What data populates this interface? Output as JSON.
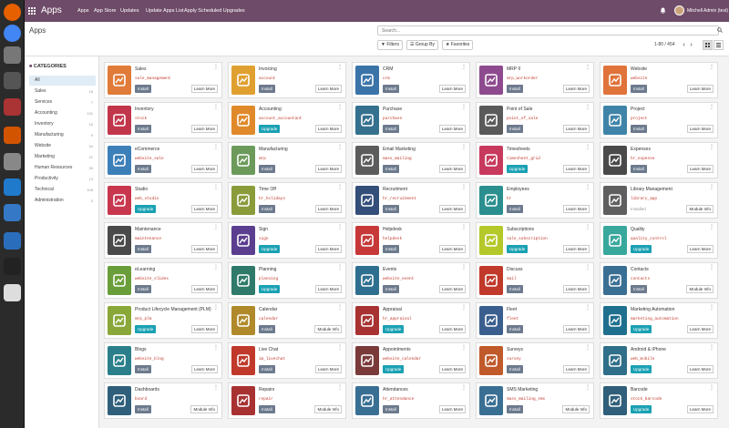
{
  "dock": {
    "icons": [
      "firefox-icon",
      "chrome-icon",
      "settings-icon",
      "calculator-icon",
      "camera-icon",
      "terminal-icon",
      "installer-icon",
      "vscode-icon",
      "files-icon",
      "hp-icon",
      "jetbrains-icon",
      "printer-icon"
    ]
  },
  "topbar": {
    "brand": "Apps",
    "menu": [
      "Apps",
      "App Store",
      "Updates",
      "Update Apps List",
      "Apply Scheduled Upgrades"
    ],
    "user": "Mitchell Admin (test)"
  },
  "control": {
    "title": "Apps",
    "search_placeholder": "Search...",
    "filters": "Filters",
    "group_by": "Group By",
    "favorites": "Favorites",
    "pager": "1-80 / 454"
  },
  "sidebar": {
    "heading": "CATEGORIES",
    "items": [
      {
        "label": "All",
        "count": ""
      },
      {
        "label": "Sales",
        "count": "16"
      },
      {
        "label": "Services",
        "count": "7"
      },
      {
        "label": "Accounting",
        "count": "131"
      },
      {
        "label": "Inventory",
        "count": "16"
      },
      {
        "label": "Manufacturing",
        "count": "9"
      },
      {
        "label": "Website",
        "count": "34"
      },
      {
        "label": "Marketing",
        "count": "22"
      },
      {
        "label": "Human Resources",
        "count": "35"
      },
      {
        "label": "Productivity",
        "count": "13"
      },
      {
        "label": "Technical",
        "count": "108"
      },
      {
        "label": "Administration",
        "count": "3"
      }
    ]
  },
  "apps": [
    {
      "name": "Sales",
      "tech": "sale_management",
      "action": "Install",
      "info": "Learn More",
      "color": "#e07b39",
      "icon": "sales-icon"
    },
    {
      "name": "Invoicing",
      "tech": "account",
      "action": "Install",
      "info": "Learn More",
      "color": "#e0a030",
      "icon": "invoicing-icon"
    },
    {
      "name": "CRM",
      "tech": "crm",
      "action": "Install",
      "info": "Learn More",
      "color": "#3a73a8",
      "icon": "crm-icon"
    },
    {
      "name": "MRP II",
      "tech": "mrp_workorder",
      "action": "Install",
      "info": "Learn More",
      "color": "#8e4a8e",
      "icon": "mrp-icon"
    },
    {
      "name": "Website",
      "tech": "website",
      "action": "Install",
      "info": "Learn More",
      "color": "#e0733a",
      "icon": "website-icon"
    },
    {
      "name": "Inventory",
      "tech": "stock",
      "action": "Install",
      "info": "Learn More",
      "color": "#c2364b",
      "icon": "inventory-icon"
    },
    {
      "name": "Accounting",
      "tech": "account_accountant",
      "action": "Upgrade",
      "info": "Learn More",
      "color": "#e0892b",
      "icon": "accounting-icon"
    },
    {
      "name": "Purchase",
      "tech": "purchase",
      "action": "Install",
      "info": "Learn More",
      "color": "#35708f",
      "icon": "purchase-icon"
    },
    {
      "name": "Point of Sale",
      "tech": "point_of_sale",
      "action": "Install",
      "info": "Learn More",
      "color": "#5a5a5a",
      "icon": "pos-icon"
    },
    {
      "name": "Project",
      "tech": "project",
      "action": "Install",
      "info": "Learn More",
      "color": "#3f84a8",
      "icon": "project-icon"
    },
    {
      "name": "eCommerce",
      "tech": "website_sale",
      "action": "Install",
      "info": "Learn More",
      "color": "#3d7fb8",
      "icon": "ecommerce-icon"
    },
    {
      "name": "Manufacturing",
      "tech": "mrp",
      "action": "Install",
      "info": "Learn More",
      "color": "#6c9a5b",
      "icon": "manufacturing-icon"
    },
    {
      "name": "Email Marketing",
      "tech": "mass_mailing",
      "action": "Install",
      "info": "Learn More",
      "color": "#5c5c5c",
      "icon": "email-marketing-icon"
    },
    {
      "name": "Timesheets",
      "tech": "timesheet_grid",
      "action": "Upgrade",
      "info": "Learn More",
      "color": "#c73a5d",
      "icon": "timesheets-icon"
    },
    {
      "name": "Expenses",
      "tech": "hr_expense",
      "action": "Install",
      "info": "Learn More",
      "color": "#4a4a4a",
      "icon": "expenses-icon"
    },
    {
      "name": "Studio",
      "tech": "web_studio",
      "action": "Upgrade",
      "info": "Learn More",
      "color": "#c8374e",
      "icon": "studio-icon"
    },
    {
      "name": "Time Off",
      "tech": "hr_holidays",
      "action": "Install",
      "info": "Learn More",
      "color": "#8a9b3a",
      "icon": "timeoff-icon"
    },
    {
      "name": "Recruitment",
      "tech": "hr_recruitment",
      "action": "Install",
      "info": "Learn More",
      "color": "#344e7a",
      "icon": "recruitment-icon"
    },
    {
      "name": "Employees",
      "tech": "hr",
      "action": "Install",
      "info": "Learn More",
      "color": "#2b8f8f",
      "icon": "employees-icon"
    },
    {
      "name": "Library Management",
      "tech": "library_app",
      "action": "Installed",
      "info": "Module Info",
      "color": "#5f5f5f",
      "icon": "library-icon"
    },
    {
      "name": "Maintenance",
      "tech": "maintenance",
      "action": "Install",
      "info": "Learn More",
      "color": "#4a4a4a",
      "icon": "maintenance-icon"
    },
    {
      "name": "Sign",
      "tech": "sign",
      "action": "Upgrade",
      "info": "Learn More",
      "color": "#5b3e8f",
      "icon": "sign-icon"
    },
    {
      "name": "Helpdesk",
      "tech": "helpdesk",
      "action": "Install",
      "info": "Learn More",
      "color": "#c73838",
      "icon": "helpdesk-icon"
    },
    {
      "name": "Subscriptions",
      "tech": "sale_subscription",
      "action": "Upgrade",
      "info": "Learn More",
      "color": "#b5c82a",
      "icon": "subscriptions-icon"
    },
    {
      "name": "Quality",
      "tech": "quality_control",
      "action": "Upgrade",
      "info": "Learn More",
      "color": "#38a89d",
      "icon": "quality-icon"
    },
    {
      "name": "eLearning",
      "tech": "website_slides",
      "action": "Install",
      "info": "Learn More",
      "color": "#6a9e3a",
      "icon": "elearning-icon"
    },
    {
      "name": "Planning",
      "tech": "planning",
      "action": "Upgrade",
      "info": "Learn More",
      "color": "#2f7a6a",
      "icon": "planning-icon"
    },
    {
      "name": "Events",
      "tech": "website_event",
      "action": "Install",
      "info": "Learn More",
      "color": "#2e6f8f",
      "icon": "events-icon"
    },
    {
      "name": "Discuss",
      "tech": "mail",
      "action": "Install",
      "info": "Learn More",
      "color": "#c0392b",
      "icon": "discuss-icon"
    },
    {
      "name": "Contacts",
      "tech": "contacts",
      "action": "Install",
      "info": "Module Info",
      "color": "#3a6f94",
      "icon": "contacts-icon"
    },
    {
      "name": "Product Lifecycle Management (PLM)",
      "tech": "mrp_plm",
      "action": "Upgrade",
      "info": "Learn More",
      "color": "#8aa83a",
      "icon": "plm-icon"
    },
    {
      "name": "Calendar",
      "tech": "calendar",
      "action": "Install",
      "info": "Module Info",
      "color": "#b0892b",
      "icon": "calendar-icon"
    },
    {
      "name": "Appraisal",
      "tech": "hr_appraisal",
      "action": "Upgrade",
      "info": "Learn More",
      "color": "#a83232",
      "icon": "appraisal-icon"
    },
    {
      "name": "Fleet",
      "tech": "fleet",
      "action": "Install",
      "info": "Learn More",
      "color": "#3a5f8f",
      "icon": "fleet-icon"
    },
    {
      "name": "Marketing Automation",
      "tech": "marketing_automation",
      "action": "Upgrade",
      "info": "Learn More",
      "color": "#1f6f8f",
      "icon": "marketing-automation-icon"
    },
    {
      "name": "Blogs",
      "tech": "website_blog",
      "action": "Install",
      "info": "Learn More",
      "color": "#2a7f8a",
      "icon": "blogs-icon"
    },
    {
      "name": "Live Chat",
      "tech": "im_livechat",
      "action": "Install",
      "info": "Learn More",
      "color": "#c0392b",
      "icon": "livechat-icon"
    },
    {
      "name": "Appointments",
      "tech": "website_calendar",
      "action": "Upgrade",
      "info": "Learn More",
      "color": "#7a3a3a",
      "icon": "appointments-icon"
    },
    {
      "name": "Surveys",
      "tech": "survey",
      "action": "Install",
      "info": "Learn More",
      "color": "#c05a2b",
      "icon": "surveys-icon"
    },
    {
      "name": "Android & iPhone",
      "tech": "web_mobile",
      "action": "Upgrade",
      "info": "Learn More",
      "color": "#2f6f8a",
      "icon": "mobile-icon"
    },
    {
      "name": "Dashboards",
      "tech": "board",
      "action": "Install",
      "info": "Module Info",
      "color": "#2f5f7a",
      "icon": "dashboards-icon"
    },
    {
      "name": "Repairs",
      "tech": "repair",
      "action": "Install",
      "info": "Module Info",
      "color": "#a83232",
      "icon": "repairs-icon"
    },
    {
      "name": "Attendances",
      "tech": "hr_attendance",
      "action": "Install",
      "info": "Learn More",
      "color": "#3a6f94",
      "icon": "attendances-icon"
    },
    {
      "name": "SMS Marketing",
      "tech": "mass_mailing_sms",
      "action": "Install",
      "info": "Module Info",
      "color": "#3a6f94",
      "icon": "sms-icon"
    },
    {
      "name": "Barcode",
      "tech": "stock_barcode",
      "action": "Upgrade",
      "info": "Learn More",
      "color": "#2f5f7a",
      "icon": "barcode-icon"
    }
  ]
}
